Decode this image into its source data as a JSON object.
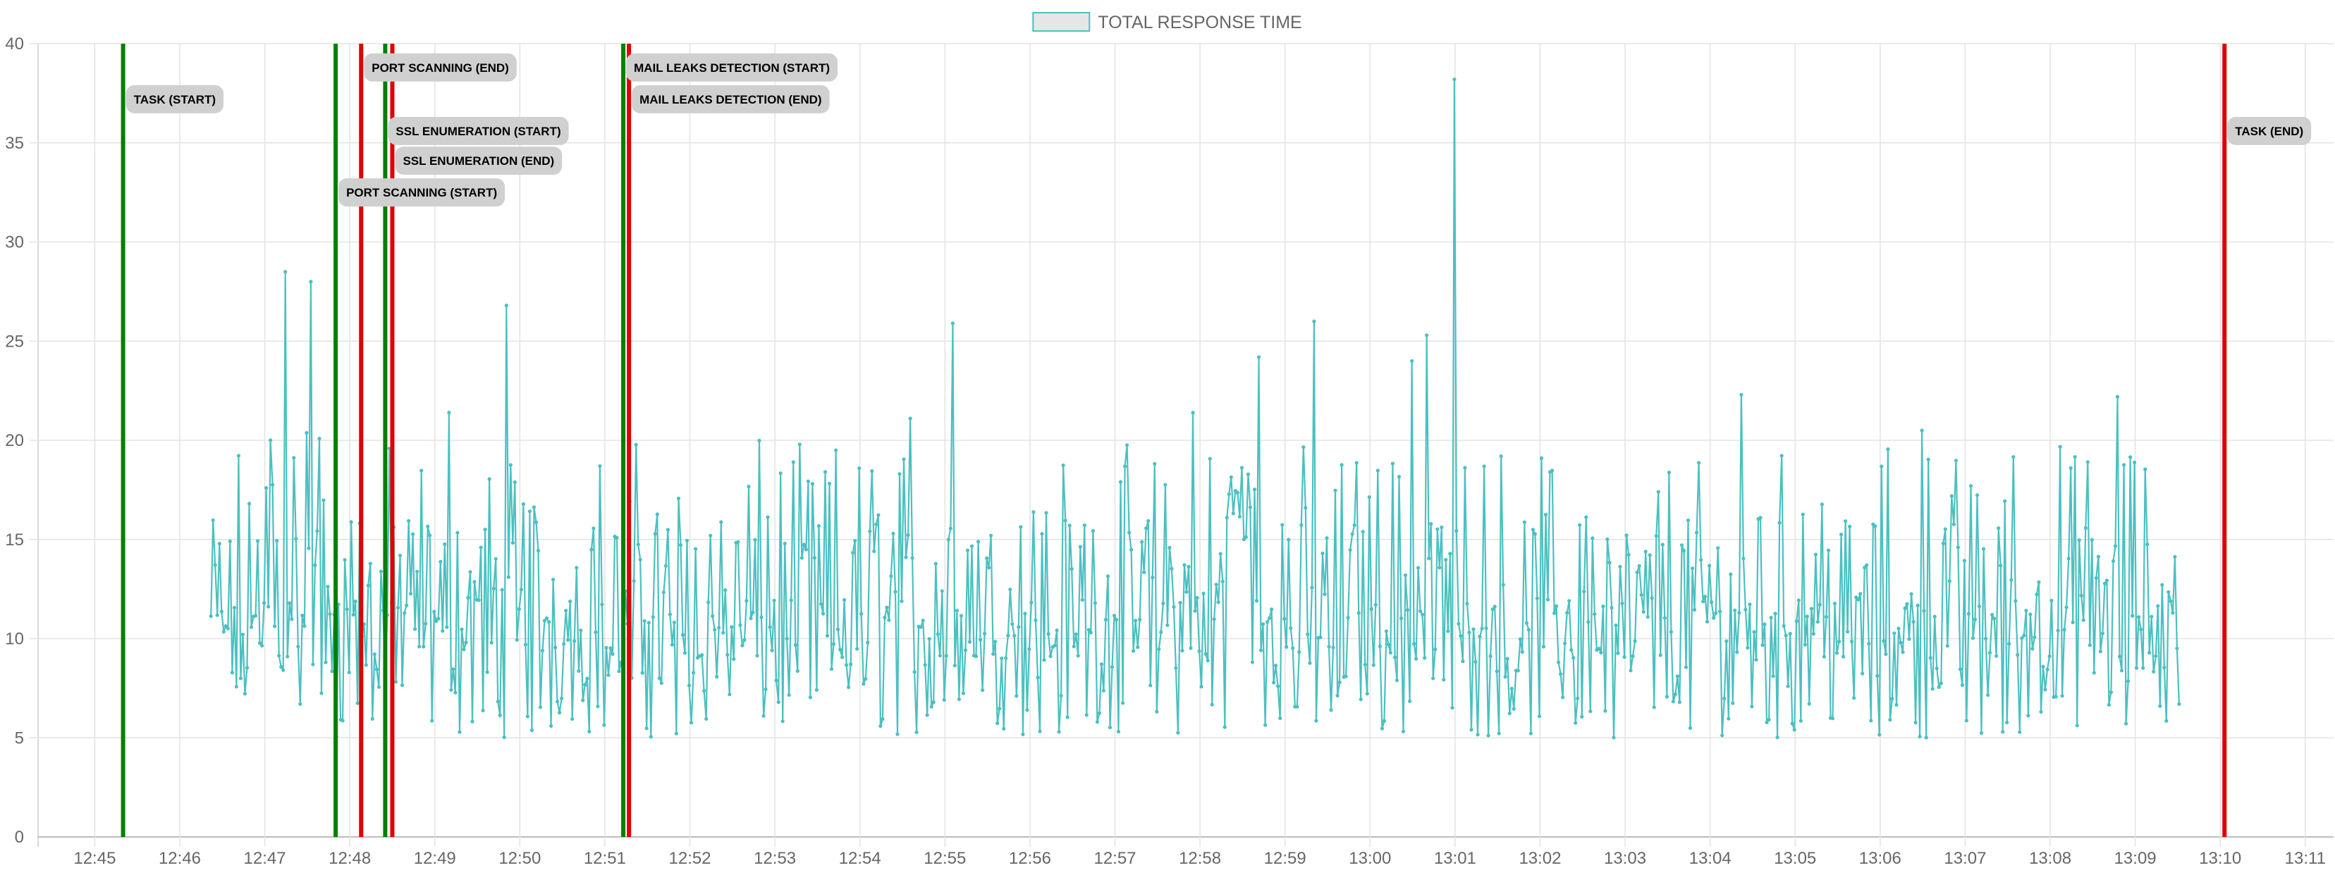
{
  "legend": {
    "label": "TOTAL RESPONSE TIME",
    "swatch_fill": "#e6e6e6",
    "swatch_stroke": "#4bc0c0"
  },
  "chart_data": {
    "type": "line",
    "series": [
      {
        "name": "TOTAL RESPONSE TIME",
        "color": "#4bc0c0",
        "points": []
      }
    ],
    "x_ticks": [
      "12:45",
      "12:46",
      "12:47",
      "12:48",
      "12:49",
      "12:50",
      "12:51",
      "12:52",
      "12:53",
      "12:54",
      "12:55",
      "12:56",
      "12:57",
      "12:58",
      "12:59",
      "13:00",
      "13:01",
      "13:02",
      "13:03",
      "13:04",
      "13:05",
      "13:06",
      "13:07",
      "13:08",
      "13:09",
      "13:10",
      "13:11"
    ],
    "xlim": [
      "12:44:20",
      "13:11:20"
    ],
    "ylim": [
      0,
      40
    ],
    "y_ticks": [
      0,
      5,
      10,
      15,
      20,
      25,
      30,
      35,
      40
    ],
    "grid": true,
    "legend_position": "top-center",
    "series_notes": "Dense response-time trace from about 12:46:22 to 13:09:32, mostly between 4 and 22, with peaks near 28.5 (12:47:15), 28 (12:47:32), 26.8 (12:49:51), 25.9 (12:55:06), 26 (12:59:21), 25.3 (13:00:40) and a maximum of 38.2 at 13:00:59.",
    "markers": [
      {
        "label": "TASK (START)",
        "time": "12:45:20",
        "color": "#008000",
        "label_y": 37.2
      },
      {
        "label": "PORT SCANNING (START)",
        "time": "12:47:50",
        "color": "#008000",
        "label_y": 32.5
      },
      {
        "label": "PORT SCANNING (END)",
        "time": "12:48:08",
        "color": "#e00000",
        "label_y": 38.8
      },
      {
        "label": "SSL ENUMERATION (START)",
        "time": "12:48:25",
        "color": "#008000",
        "label_y": 35.6
      },
      {
        "label": "SSL ENUMERATION (END)",
        "time": "12:48:30",
        "color": "#e00000",
        "label_y": 34.1
      },
      {
        "label": "MAIL LEAKS DETECTION (START)",
        "time": "12:51:13",
        "color": "#008000",
        "label_y": 38.8
      },
      {
        "label": "MAIL LEAKS DETECTION (END)",
        "time": "12:51:17",
        "color": "#e00000",
        "label_y": 37.2
      },
      {
        "label": "TASK (END)",
        "time": "13:10:03",
        "color": "#e00000",
        "label_y": 35.6
      }
    ]
  }
}
